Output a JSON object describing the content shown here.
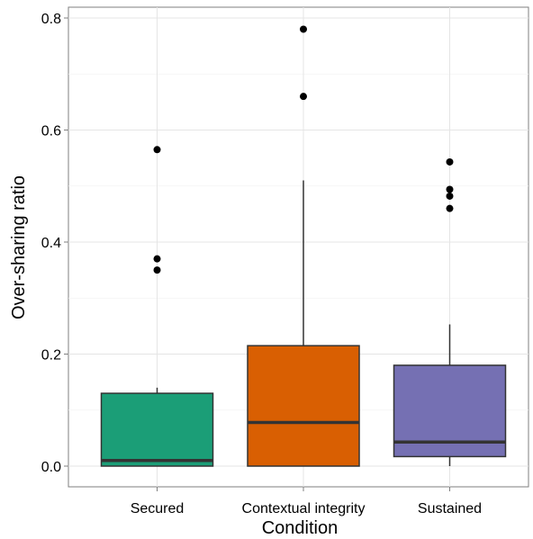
{
  "chart_data": {
    "type": "box",
    "title": "",
    "xlabel": "Condition",
    "ylabel": "Over-sharing ratio",
    "ylim": [
      -0.04,
      0.82
    ],
    "yticks": [
      0.0,
      0.2,
      0.4,
      0.6,
      0.8
    ],
    "ytick_labels": [
      "0.0",
      "0.2",
      "0.4",
      "0.6",
      "0.8"
    ],
    "grid": true,
    "legend": "none",
    "categories": [
      "Secured",
      "Contextual integrity",
      "Sustained"
    ],
    "boxes": [
      {
        "category": "Secured",
        "color": "#1b9e77",
        "min": 0.0,
        "q1": 0.0,
        "median": 0.01,
        "q3": 0.13,
        "max": 0.14,
        "outliers": [
          0.35,
          0.37,
          0.565
        ]
      },
      {
        "category": "Contextual integrity",
        "color": "#d95f02",
        "min": 0.0,
        "q1": 0.0,
        "median": 0.078,
        "q3": 0.215,
        "max": 0.51,
        "outliers": [
          0.66,
          0.78
        ]
      },
      {
        "category": "Sustained",
        "color": "#7570b3",
        "min": 0.0,
        "q1": 0.017,
        "median": 0.043,
        "q3": 0.18,
        "max": 0.253,
        "outliers": [
          0.46,
          0.482,
          0.494,
          0.543
        ]
      }
    ]
  }
}
